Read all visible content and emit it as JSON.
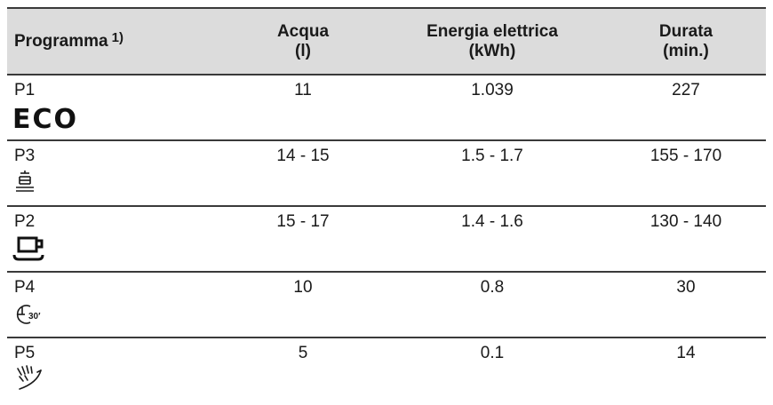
{
  "header": {
    "programma": "Programma",
    "programma_note": "1)",
    "acqua_line1": "Acqua",
    "acqua_line2": "(l)",
    "energia_line1": "Energia elettrica",
    "energia_line2": "(kWh)",
    "durata_line1": "Durata",
    "durata_line2": "(min.)"
  },
  "rows": [
    {
      "program": "P1",
      "label": "ECO",
      "icon": "eco-text",
      "acqua": "11",
      "energia": "1.039",
      "durata": "227"
    },
    {
      "program": "P3",
      "icon": "dishes-stack-icon",
      "acqua": "14 - 15",
      "energia": "1.5 - 1.7",
      "durata": "155 - 170"
    },
    {
      "program": "P2",
      "icon": "cup-icon",
      "acqua": "15 - 17",
      "energia": "1.4 - 1.6",
      "durata": "130 - 140"
    },
    {
      "program": "P4",
      "icon": "timer-30-icon",
      "icon_text": "30′",
      "acqua": "10",
      "energia": "0.8",
      "durata": "30"
    },
    {
      "program": "P5",
      "icon": "rinse-spray-icon",
      "acqua": "5",
      "energia": "0.1",
      "durata": "14"
    }
  ]
}
